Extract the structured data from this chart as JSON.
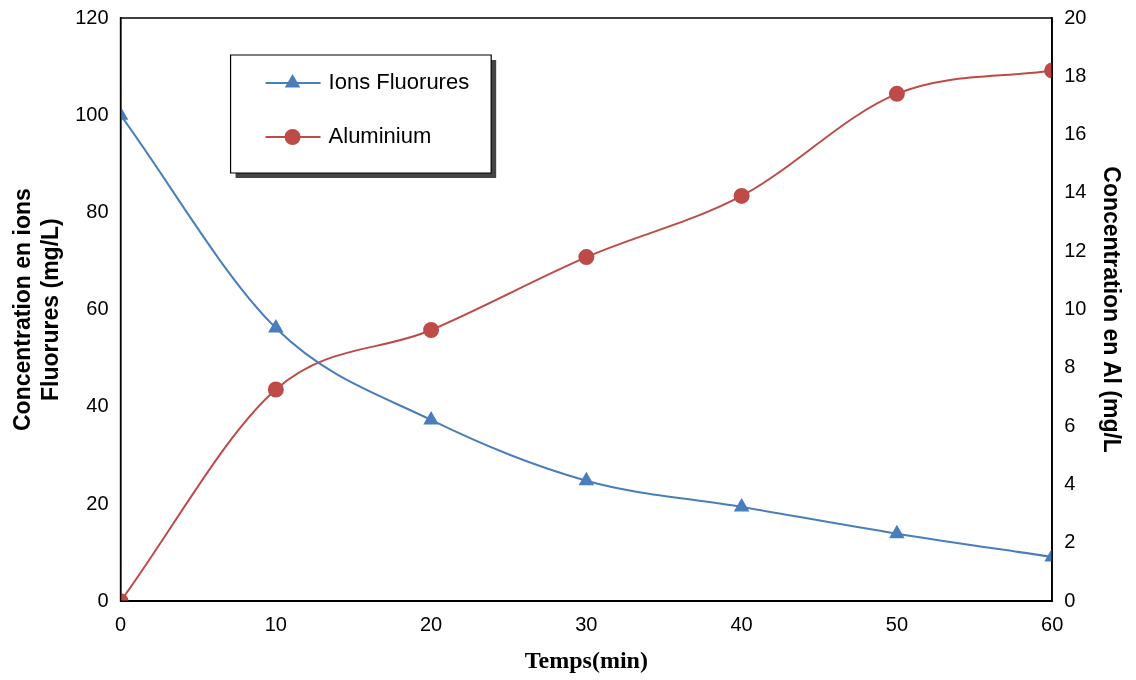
{
  "chart_data": {
    "type": "line",
    "xlabel": "Temps(min)",
    "ylabel": "Concentration en ions\nFluorures (mg/L)",
    "y2label": "Concentration en Al (mg/L",
    "x": [
      0,
      10,
      20,
      30,
      40,
      50,
      60
    ],
    "xlim": [
      0,
      60
    ],
    "xticks": [
      0,
      10,
      20,
      30,
      40,
      50,
      60
    ],
    "ylim": [
      0,
      120
    ],
    "yticks": [
      0,
      20,
      40,
      60,
      80,
      100,
      120
    ],
    "y2lim": [
      0,
      20
    ],
    "y2ticks": [
      0,
      2,
      4,
      6,
      8,
      10,
      12,
      14,
      16,
      18,
      20
    ],
    "grid": false,
    "legend": "top left",
    "series": [
      {
        "name": "Ions Fluorures",
        "color": "#4a7ebb",
        "marker": "triangle",
        "values": [
          100,
          56.2,
          37.3,
          24.8,
          19.4,
          13.9,
          9.1
        ]
      },
      {
        "name": "Aluminium",
        "color": "#be4b48",
        "marker": "circle",
        "axis": "y2",
        "values": [
          0,
          7.26,
          9.3,
          11.8,
          13.9,
          17.4,
          18.2
        ]
      }
    ]
  }
}
